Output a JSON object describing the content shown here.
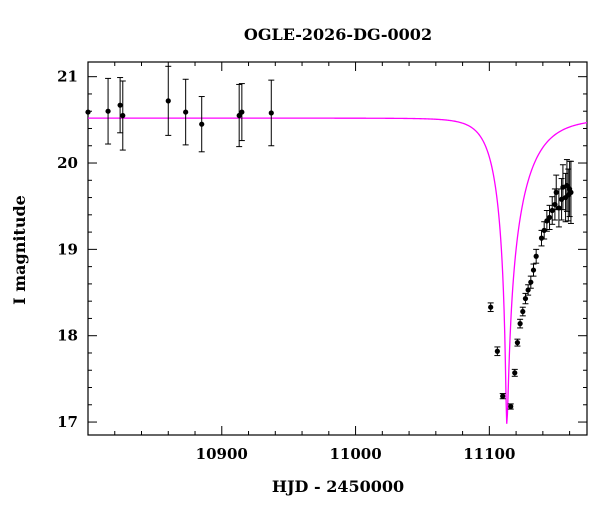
{
  "chart_data": {
    "type": "scatter",
    "title": "OGLE-2026-DG-0002",
    "xlabel": "HJD - 2450000",
    "ylabel": "I magnitude",
    "xlim": [
      10800,
      11173
    ],
    "ylim": [
      21.17,
      16.85
    ],
    "y_inverted": true,
    "grid": false,
    "x_ticks": [
      10900,
      11000,
      11100
    ],
    "y_ticks": [
      17,
      18,
      19,
      20,
      21
    ],
    "colors": {
      "model": "#ff00ff",
      "points": "#000000",
      "axes": "#000000"
    },
    "model": {
      "type": "line",
      "baseline_mag": 20.52,
      "peak_time": 11113,
      "peak_mag": 16.98,
      "tE_rise": 16,
      "tE_fall": 28
    },
    "points": [
      {
        "x": 10800,
        "y": 20.59,
        "err": 0.0
      },
      {
        "x": 10815,
        "y": 20.6,
        "err": 0.38
      },
      {
        "x": 10824,
        "y": 20.67,
        "err": 0.32
      },
      {
        "x": 10826,
        "y": 20.55,
        "err": 0.4
      },
      {
        "x": 10860,
        "y": 20.72,
        "err": 0.4
      },
      {
        "x": 10873,
        "y": 20.59,
        "err": 0.38
      },
      {
        "x": 10885,
        "y": 20.45,
        "err": 0.32
      },
      {
        "x": 10913,
        "y": 20.55,
        "err": 0.36
      },
      {
        "x": 10915,
        "y": 20.59,
        "err": 0.33
      },
      {
        "x": 10937,
        "y": 20.58,
        "err": 0.38
      },
      {
        "x": 11101,
        "y": 18.33,
        "err": 0.05
      },
      {
        "x": 11106,
        "y": 17.82,
        "err": 0.05
      },
      {
        "x": 11110,
        "y": 17.3,
        "err": 0.03
      },
      {
        "x": 11116,
        "y": 17.18,
        "err": 0.03
      },
      {
        "x": 11119,
        "y": 17.57,
        "err": 0.04
      },
      {
        "x": 11121,
        "y": 17.92,
        "err": 0.04
      },
      {
        "x": 11123,
        "y": 18.14,
        "err": 0.05
      },
      {
        "x": 11125,
        "y": 18.28,
        "err": 0.05
      },
      {
        "x": 11127,
        "y": 18.43,
        "err": 0.06
      },
      {
        "x": 11129,
        "y": 18.53,
        "err": 0.06
      },
      {
        "x": 11131,
        "y": 18.62,
        "err": 0.07
      },
      {
        "x": 11133,
        "y": 18.76,
        "err": 0.07
      },
      {
        "x": 11135,
        "y": 18.92,
        "err": 0.08
      },
      {
        "x": 11139,
        "y": 19.13,
        "err": 0.09
      },
      {
        "x": 11141,
        "y": 19.22,
        "err": 0.1
      },
      {
        "x": 11143,
        "y": 19.33,
        "err": 0.12
      },
      {
        "x": 11145,
        "y": 19.37,
        "err": 0.14
      },
      {
        "x": 11147,
        "y": 19.45,
        "err": 0.16
      },
      {
        "x": 11149,
        "y": 19.52,
        "err": 0.18
      },
      {
        "x": 11150,
        "y": 19.66,
        "err": 0.2
      },
      {
        "x": 11152,
        "y": 19.48,
        "err": 0.22
      },
      {
        "x": 11154,
        "y": 19.58,
        "err": 0.24
      },
      {
        "x": 11155,
        "y": 19.72,
        "err": 0.26
      },
      {
        "x": 11157,
        "y": 19.6,
        "err": 0.28
      },
      {
        "x": 11158,
        "y": 19.74,
        "err": 0.3
      },
      {
        "x": 11159,
        "y": 19.63,
        "err": 0.3
      },
      {
        "x": 11160,
        "y": 19.7,
        "err": 0.32
      },
      {
        "x": 11161,
        "y": 19.66,
        "err": 0.36
      }
    ]
  }
}
